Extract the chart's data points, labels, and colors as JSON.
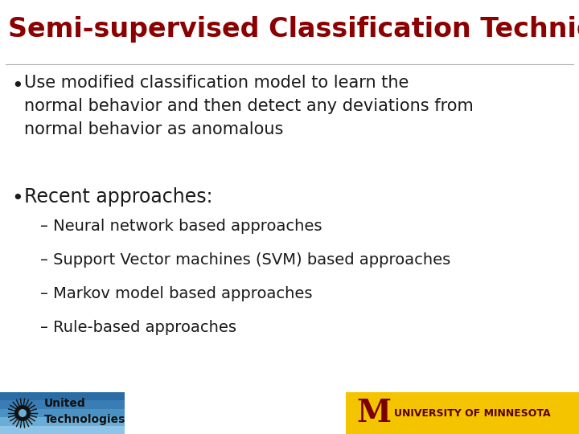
{
  "title": "Semi-supervised Classification Techniques",
  "title_color": "#8B0000",
  "title_fontsize": 24,
  "background_color": "#FFFFFF",
  "bullet1_text": "Use modified classification model to learn the\nnormal behavior and then detect any deviations from\nnormal behavior as anomalous",
  "bullet2_text": "Recent approaches:",
  "subbullets": [
    "– Neural network based approaches",
    "– Support Vector machines (SVM) based approaches",
    "– Markov model based approaches",
    "– Rule-based approaches"
  ],
  "text_color": "#1a1a1a",
  "bullet_color": "#1a1a1a",
  "body_fontsize": 15,
  "subbullet_fontsize": 14,
  "footer_left_text1": "United",
  "footer_left_text2": "Technologies",
  "footer_right_text": "UNIVERSITY OF MINNESOTA"
}
